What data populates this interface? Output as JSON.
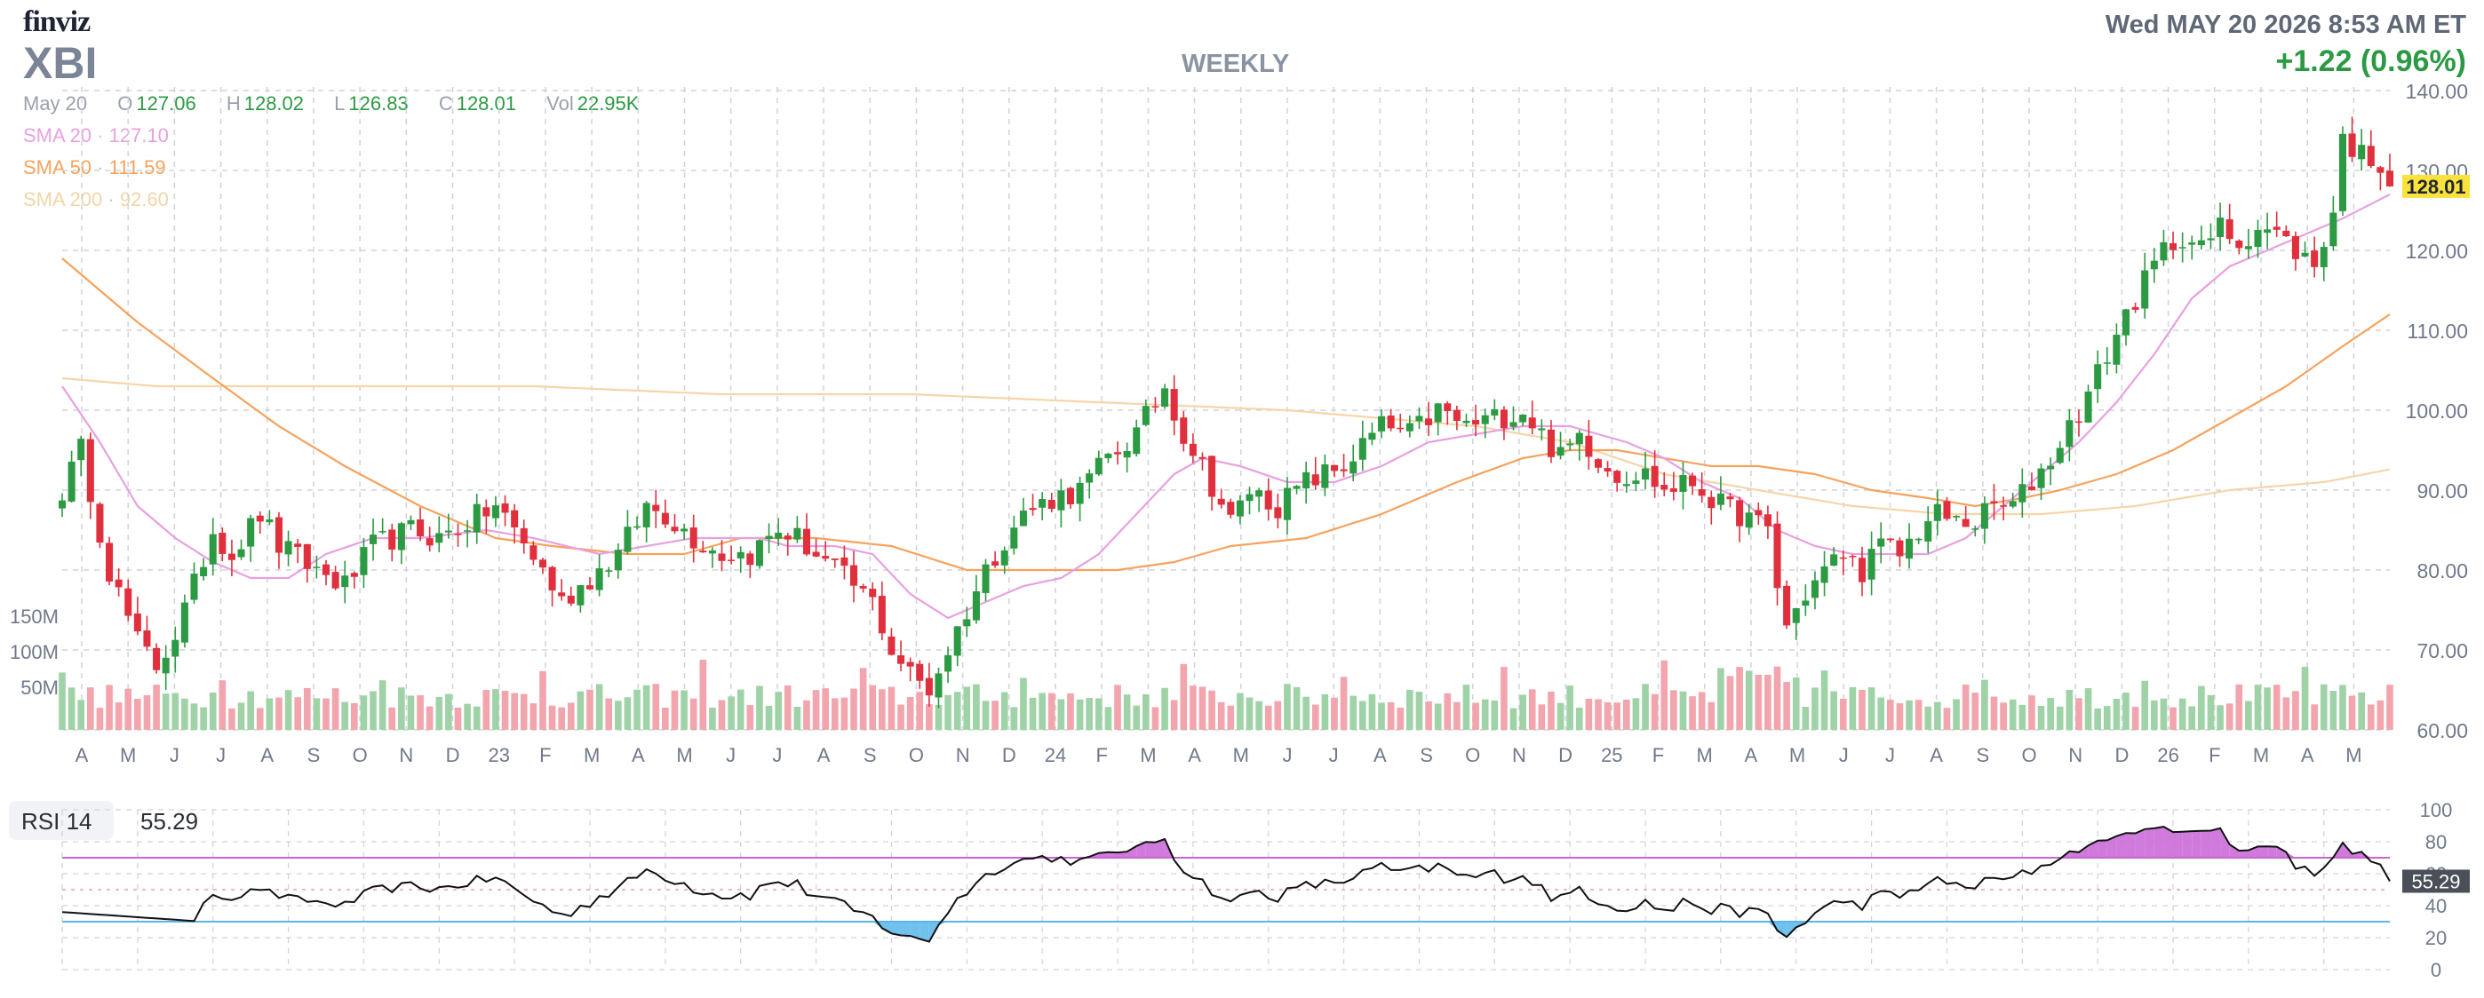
{
  "header": {
    "logo": "finviz",
    "ticker": "XBI",
    "timeframe": "WEEKLY",
    "datetime": "Wed MAY 20 2026 8:53 AM ET",
    "change": "+1.22 (0.96%)"
  },
  "ohlc": {
    "date": "May 20",
    "open_label": "O",
    "open": "127.06",
    "high_label": "H",
    "high": "128.02",
    "low_label": "L",
    "low": "126.83",
    "close_label": "C",
    "close": "128.01",
    "vol_label": "Vol",
    "vol": "22.95K"
  },
  "sma": {
    "sma20_label": "SMA 20",
    "sma20_value": "127.10",
    "sma50_label": "SMA 50",
    "sma50_value": "111.59",
    "sma200_label": "SMA 200",
    "sma200_value": "92.60",
    "separator": "·"
  },
  "rsi": {
    "label": "RSI 14",
    "value": "55.29"
  },
  "colors": {
    "up": "#2c9a43",
    "down": "#e0303d",
    "vol_up": "#9fd3a7",
    "vol_down": "#f2a5ad",
    "sma20": "#e8a0e0",
    "sma50": "#f6a25c",
    "sma200": "#f6d5a8",
    "rsi_line": "#111111",
    "rsi_upper": "#c864d6",
    "rsi_lower": "#58b6ea",
    "grid": "#cfd3d9",
    "price_tag": "#f9e23c"
  },
  "chart_data": [
    {
      "type": "candlestick",
      "title": "",
      "ylabel": "",
      "y_ticks": [
        "60.00",
        "70.00",
        "80.00",
        "90.00",
        "100.00",
        "110.00",
        "120.00",
        "130.00",
        "140.00"
      ],
      "ylim": [
        60,
        140
      ],
      "last_price": "128.01",
      "x_labels": [
        "A",
        "M",
        "J",
        "J",
        "A",
        "S",
        "O",
        "N",
        "D",
        "23",
        "F",
        "M",
        "A",
        "M",
        "J",
        "J",
        "A",
        "S",
        "O",
        "N",
        "D",
        "24",
        "F",
        "M",
        "A",
        "M",
        "J",
        "J",
        "A",
        "S",
        "O",
        "N",
        "D",
        "25",
        "F",
        "M",
        "A",
        "M",
        "J",
        "J",
        "A",
        "S",
        "O",
        "N",
        "D",
        "26",
        "F",
        "M",
        "A",
        "M"
      ],
      "close_anchors": [
        [
          0,
          90
        ],
        [
          2,
          95
        ],
        [
          5,
          80
        ],
        [
          8,
          71
        ],
        [
          10,
          68
        ],
        [
          12,
          72
        ],
        [
          14,
          78
        ],
        [
          16,
          85
        ],
        [
          18,
          82
        ],
        [
          21,
          87
        ],
        [
          23,
          83
        ],
        [
          27,
          80
        ],
        [
          30,
          78
        ],
        [
          33,
          83
        ],
        [
          37,
          85
        ],
        [
          40,
          84
        ],
        [
          43,
          86
        ],
        [
          46,
          88
        ],
        [
          48,
          85
        ],
        [
          51,
          80
        ],
        [
          53,
          76
        ],
        [
          56,
          79
        ],
        [
          59,
          82
        ],
        [
          62,
          88
        ],
        [
          64,
          87
        ],
        [
          67,
          84
        ],
        [
          70,
          82
        ],
        [
          73,
          82
        ],
        [
          76,
          85
        ],
        [
          78,
          84
        ],
        [
          82,
          80
        ],
        [
          84,
          78
        ],
        [
          86,
          76
        ],
        [
          88,
          70
        ],
        [
          90,
          67
        ],
        [
          92,
          65
        ],
        [
          94,
          70
        ],
        [
          96,
          75
        ],
        [
          98,
          80
        ],
        [
          100,
          84
        ],
        [
          102,
          87
        ],
        [
          105,
          89
        ],
        [
          108,
          90
        ],
        [
          111,
          94
        ],
        [
          114,
          97
        ],
        [
          117,
          103
        ],
        [
          119,
          97
        ],
        [
          121,
          93
        ],
        [
          124,
          86
        ],
        [
          126,
          90
        ],
        [
          129,
          88
        ],
        [
          132,
          91
        ],
        [
          136,
          93
        ],
        [
          140,
          98
        ],
        [
          143,
          97
        ],
        [
          146,
          100
        ],
        [
          149,
          98
        ],
        [
          152,
          99
        ],
        [
          155,
          100
        ],
        [
          157,
          97
        ],
        [
          159,
          94
        ],
        [
          161,
          97
        ],
        [
          163,
          94
        ],
        [
          165,
          92
        ],
        [
          168,
          92
        ],
        [
          170,
          90
        ],
        [
          173,
          91
        ],
        [
          176,
          88
        ],
        [
          178,
          87
        ],
        [
          181,
          85
        ],
        [
          182,
          78
        ],
        [
          183,
          73
        ],
        [
          185,
          77
        ],
        [
          187,
          80
        ],
        [
          189,
          82
        ],
        [
          191,
          80
        ],
        [
          193,
          83
        ],
        [
          195,
          82
        ],
        [
          197,
          85
        ],
        [
          199,
          87
        ],
        [
          201,
          86
        ],
        [
          203,
          86
        ],
        [
          205,
          88
        ],
        [
          207,
          88
        ],
        [
          209,
          91
        ],
        [
          211,
          94
        ],
        [
          213,
          98
        ],
        [
          215,
          102
        ],
        [
          217,
          107
        ],
        [
          219,
          112
        ],
        [
          221,
          116
        ],
        [
          223,
          120
        ],
        [
          225,
          122
        ],
        [
          227,
          120
        ],
        [
          229,
          123
        ],
        [
          231,
          121
        ],
        [
          233,
          123
        ],
        [
          235,
          122
        ],
        [
          237,
          120
        ],
        [
          239,
          118
        ],
        [
          241,
          125
        ],
        [
          242,
          134
        ],
        [
          244,
          132
        ],
        [
          246,
          131
        ],
        [
          247,
          128
        ]
      ],
      "sma_anchors": {
        "sma20": [
          [
            0,
            103
          ],
          [
            4,
            96
          ],
          [
            8,
            88
          ],
          [
            12,
            84
          ],
          [
            16,
            81
          ],
          [
            20,
            79
          ],
          [
            24,
            79
          ],
          [
            28,
            82
          ],
          [
            33,
            84
          ],
          [
            38,
            84
          ],
          [
            45,
            85
          ],
          [
            50,
            84
          ],
          [
            57,
            82
          ],
          [
            62,
            83
          ],
          [
            67,
            84
          ],
          [
            71,
            84
          ],
          [
            74,
            84
          ],
          [
            77,
            83
          ],
          [
            82,
            83
          ],
          [
            86,
            82
          ],
          [
            90,
            77
          ],
          [
            94,
            74
          ],
          [
            98,
            76
          ],
          [
            102,
            78
          ],
          [
            106,
            79
          ],
          [
            110,
            82
          ],
          [
            114,
            87
          ],
          [
            118,
            92
          ],
          [
            121,
            94
          ],
          [
            125,
            93
          ],
          [
            130,
            91
          ],
          [
            135,
            91
          ],
          [
            140,
            93
          ],
          [
            145,
            96
          ],
          [
            150,
            97
          ],
          [
            155,
            98
          ],
          [
            160,
            98
          ],
          [
            163,
            97
          ],
          [
            166,
            96
          ],
          [
            170,
            94
          ],
          [
            174,
            91
          ],
          [
            178,
            89
          ],
          [
            182,
            85
          ],
          [
            186,
            83
          ],
          [
            190,
            82
          ],
          [
            194,
            82
          ],
          [
            198,
            82
          ],
          [
            202,
            84
          ],
          [
            206,
            88
          ],
          [
            210,
            92
          ],
          [
            214,
            96
          ],
          [
            218,
            101
          ],
          [
            222,
            107
          ],
          [
            226,
            114
          ],
          [
            230,
            118
          ],
          [
            234,
            120
          ],
          [
            238,
            122
          ],
          [
            242,
            124
          ],
          [
            247,
            127
          ]
        ],
        "sma50": [
          [
            0,
            119
          ],
          [
            8,
            111
          ],
          [
            16,
            104
          ],
          [
            23,
            98
          ],
          [
            30,
            93
          ],
          [
            38,
            88
          ],
          [
            46,
            84
          ],
          [
            52,
            83
          ],
          [
            60,
            82
          ],
          [
            66,
            82
          ],
          [
            72,
            84
          ],
          [
            80,
            84
          ],
          [
            88,
            83
          ],
          [
            96,
            80
          ],
          [
            104,
            80
          ],
          [
            112,
            80
          ],
          [
            118,
            81
          ],
          [
            124,
            83
          ],
          [
            132,
            84
          ],
          [
            140,
            87
          ],
          [
            148,
            91
          ],
          [
            155,
            94
          ],
          [
            160,
            95
          ],
          [
            165,
            95
          ],
          [
            170,
            94
          ],
          [
            175,
            93
          ],
          [
            180,
            93
          ],
          [
            186,
            92
          ],
          [
            192,
            90
          ],
          [
            198,
            89
          ],
          [
            203,
            88
          ],
          [
            208,
            89
          ],
          [
            212,
            90
          ],
          [
            218,
            92
          ],
          [
            224,
            95
          ],
          [
            230,
            99
          ],
          [
            236,
            103
          ],
          [
            242,
            108
          ],
          [
            247,
            112
          ]
        ],
        "sma200": [
          [
            0,
            104
          ],
          [
            10,
            103
          ],
          [
            30,
            103
          ],
          [
            50,
            103
          ],
          [
            70,
            102
          ],
          [
            90,
            102
          ],
          [
            110,
            101
          ],
          [
            130,
            100
          ],
          [
            150,
            98
          ],
          [
            160,
            96
          ],
          [
            170,
            92
          ],
          [
            180,
            90
          ],
          [
            190,
            88
          ],
          [
            200,
            87
          ],
          [
            210,
            87
          ],
          [
            220,
            88
          ],
          [
            230,
            90
          ],
          [
            240,
            91
          ],
          [
            247,
            92.6
          ]
        ]
      }
    },
    {
      "type": "bar",
      "title": "Volume",
      "y_ticks": [
        "50M",
        "100M",
        "150M"
      ],
      "note": "weekly volume bars colored by candle direction"
    },
    {
      "type": "line",
      "title": "RSI 14",
      "y_ticks": [
        "0",
        "20",
        "40",
        "60",
        "80",
        "100"
      ],
      "ylim": [
        0,
        100
      ],
      "overbought": 70,
      "oversold": 30,
      "last_value": "55.29"
    }
  ]
}
